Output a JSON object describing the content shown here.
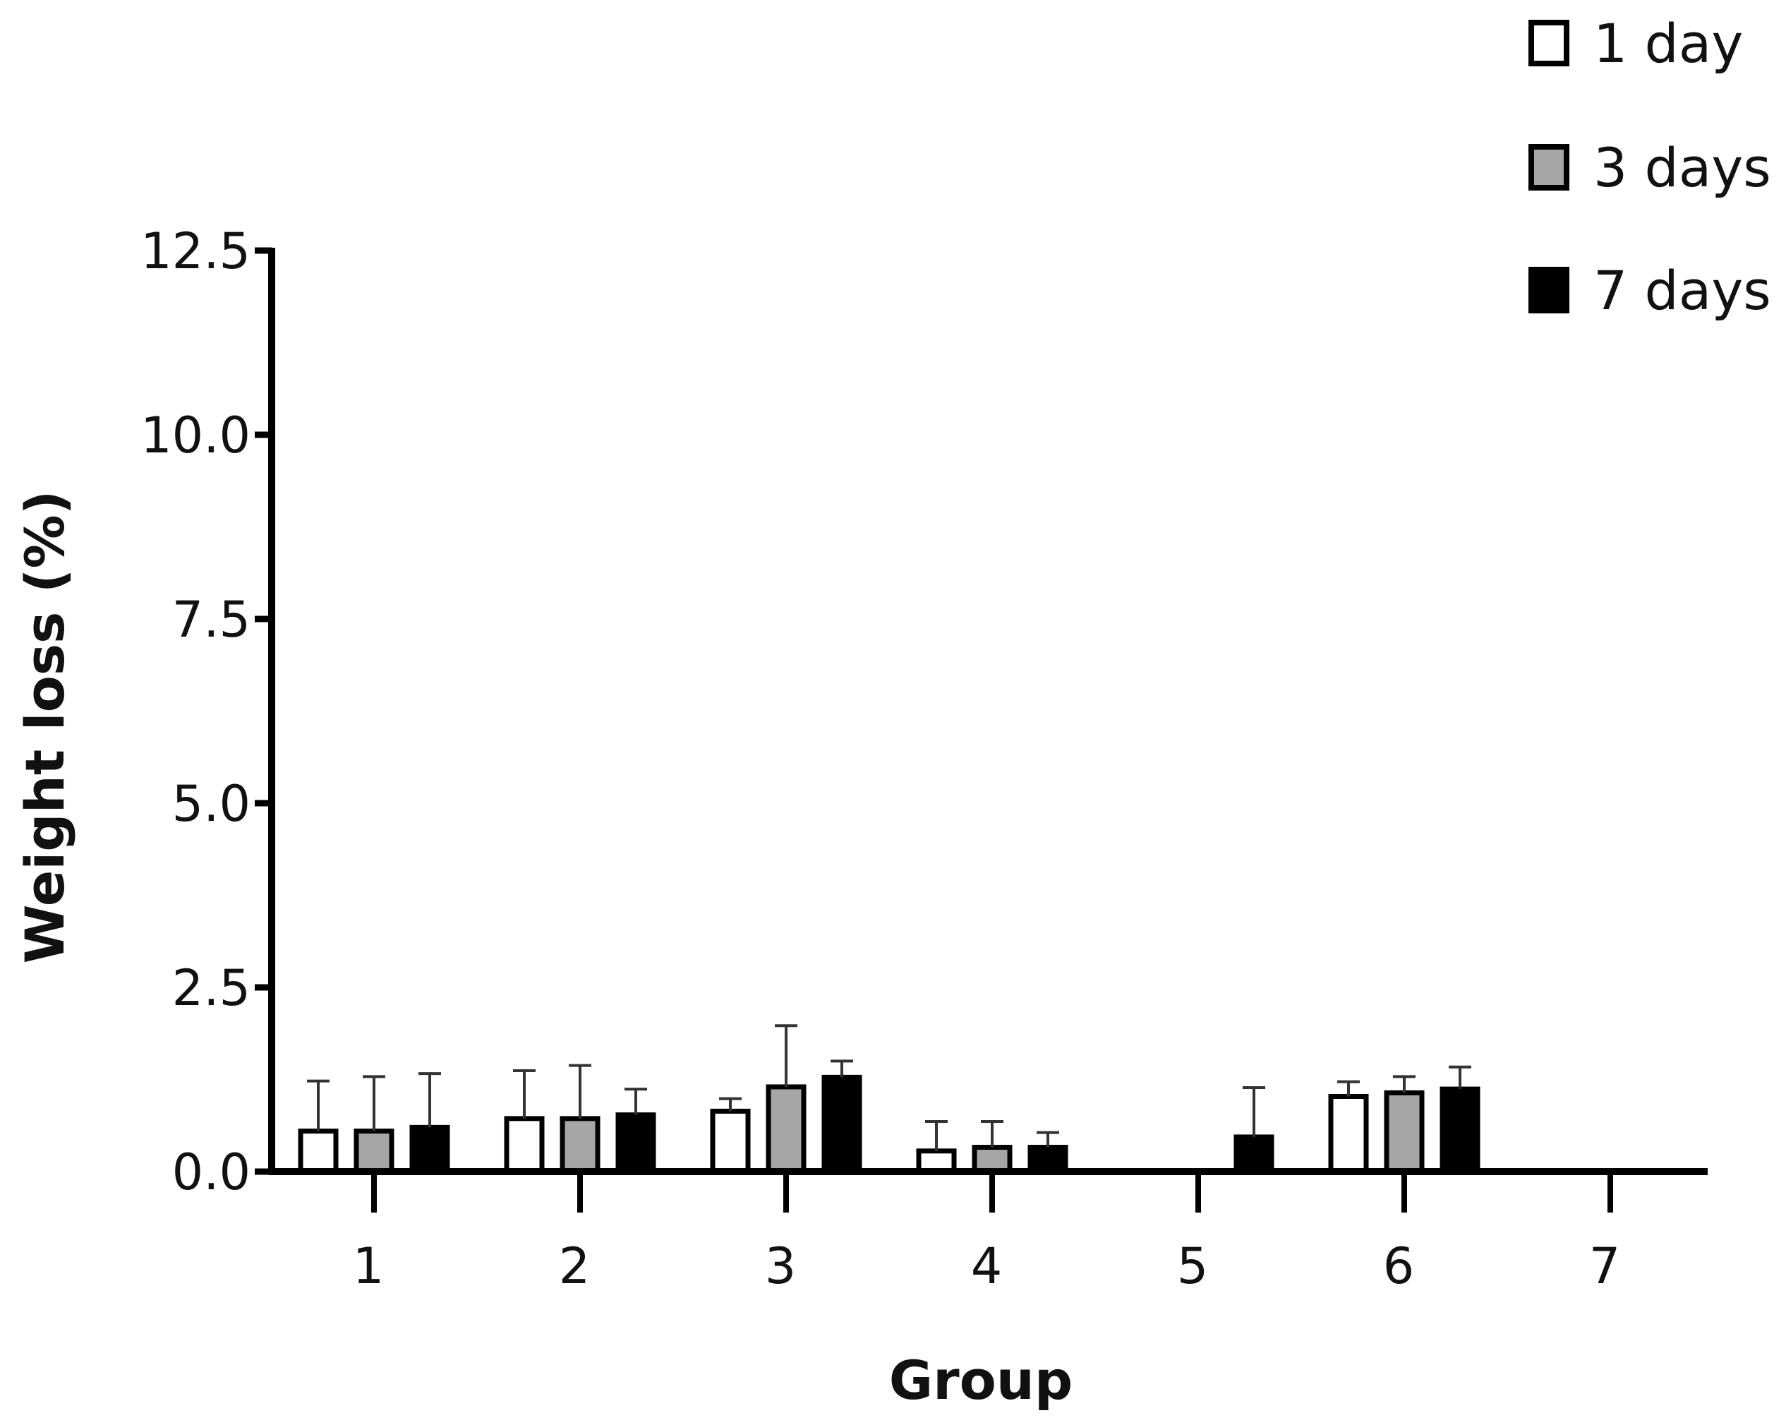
{
  "chart_data": {
    "type": "bar",
    "xlabel": "Group",
    "ylabel": "Weight loss (%)",
    "ylim": [
      0,
      12.5
    ],
    "yticks": [
      "0.0",
      "2.5",
      "5.0",
      "7.5",
      "10.0",
      "12.5"
    ],
    "categories": [
      "1",
      "2",
      "3",
      "4",
      "5",
      "6",
      "7"
    ],
    "grid": false,
    "legend_position": "top-right",
    "series": [
      {
        "name": "1 day",
        "fill": "#ffffff",
        "values": [
          0.55,
          0.72,
          0.82,
          0.28,
          0.0,
          1.02,
          0.0
        ],
        "errors": [
          0.68,
          0.65,
          0.17,
          0.4,
          0.0,
          0.2,
          0.0
        ]
      },
      {
        "name": "3 days",
        "fill": "#a6a6a6",
        "values": [
          0.55,
          0.72,
          1.15,
          0.33,
          0.0,
          1.07,
          0.0
        ],
        "errors": [
          0.74,
          0.72,
          0.83,
          0.35,
          0.0,
          0.22,
          0.0
        ]
      },
      {
        "name": "7 days",
        "fill": "#000000",
        "values": [
          0.6,
          0.77,
          1.28,
          0.33,
          0.47,
          1.12,
          0.0
        ],
        "errors": [
          0.73,
          0.35,
          0.22,
          0.2,
          0.67,
          0.3,
          0.0
        ]
      }
    ]
  }
}
